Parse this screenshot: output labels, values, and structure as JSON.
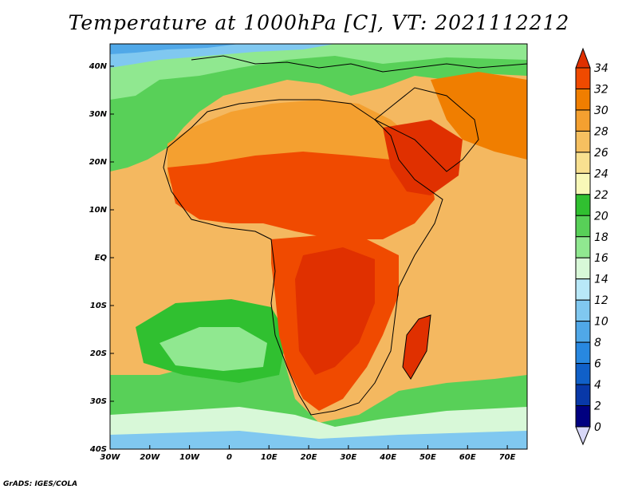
{
  "title": "Temperature at 1000hPa [C], VT: 2021112212",
  "footer": "GrADS: IGES/COLA",
  "map": {
    "lon_range": [
      -30,
      75
    ],
    "lat_range": [
      -40,
      45
    ],
    "x_tick_labels": [
      "30W",
      "20W",
      "10W",
      "0",
      "10E",
      "20E",
      "30E",
      "40E",
      "50E",
      "60E",
      "70E"
    ],
    "y_tick_labels": [
      "40N",
      "30N",
      "20N",
      "10N",
      "EQ",
      "10S",
      "20S",
      "30S",
      "40S"
    ]
  },
  "colorbar": {
    "labels": [
      "34",
      "32",
      "30",
      "28",
      "26",
      "24",
      "22",
      "20",
      "18",
      "16",
      "14",
      "12",
      "10",
      "8",
      "6",
      "4",
      "2",
      "0"
    ],
    "colors": [
      "#e03000",
      "#f04a00",
      "#f07e00",
      "#f4a030",
      "#f6c060",
      "#f8e090",
      "#f8f8b8",
      "#30c030",
      "#58d058",
      "#90e890",
      "#d8f8d8",
      "#b8e8f8",
      "#80c8f0",
      "#50a8e8",
      "#2888e0",
      "#1060c8",
      "#0838a8",
      "#000080",
      "#d8d8f8"
    ]
  }
}
